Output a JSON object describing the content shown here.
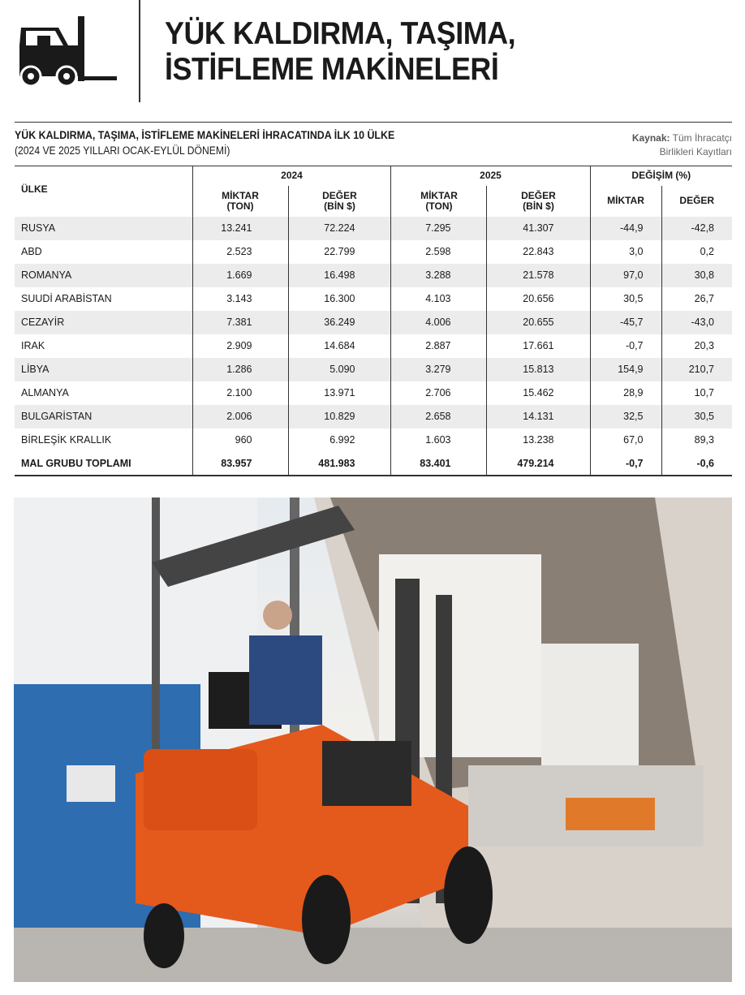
{
  "header": {
    "title_line1": "YÜK KALDIRMA, TAŞIMA,",
    "title_line2": "İSTİFLEME MAKİNELERİ",
    "icon": "forklift-icon"
  },
  "table_info": {
    "title": "YÜK KALDIRMA, TAŞIMA, İSTİFLEME MAKİNELERİ İHRACATINDA İLK 10 ÜLKE",
    "subtitle": "(2024 VE 2025 YILLARI OCAK-EYLÜL DÖNEMİ)",
    "source_label": "Kaynak:",
    "source_line1": "Tüm İhracatçı",
    "source_line2": "Birlikleri Kayıtları"
  },
  "columns": {
    "country": "ÜLKE",
    "y2024": "2024",
    "y2025": "2025",
    "change": "DEĞİŞİM (%)",
    "qty_l1": "MİKTAR",
    "qty_l2": "(TON)",
    "val_l1": "DEĞER",
    "val_l2": "(BİN $)",
    "chg_qty": "MİKTAR",
    "chg_val": "DEĞER"
  },
  "rows": [
    [
      "RUSYA",
      "13.241",
      "72.224",
      "7.295",
      "41.307",
      "-44,9",
      "-42,8"
    ],
    [
      "ABD",
      "2.523",
      "22.799",
      "2.598",
      "22.843",
      "3,0",
      "0,2"
    ],
    [
      "ROMANYA",
      "1.669",
      "16.498",
      "3.288",
      "21.578",
      "97,0",
      "30,8"
    ],
    [
      "SUUDİ ARABİSTAN",
      "3.143",
      "16.300",
      "4.103",
      "20.656",
      "30,5",
      "26,7"
    ],
    [
      "CEZAYİR",
      "7.381",
      "36.249",
      "4.006",
      "20.655",
      "-45,7",
      "-43,0"
    ],
    [
      "IRAK",
      "2.909",
      "14.684",
      "2.887",
      "17.661",
      "-0,7",
      "20,3"
    ],
    [
      "LİBYA",
      "1.286",
      "5.090",
      "3.279",
      "15.813",
      "154,9",
      "210,7"
    ],
    [
      "ALMANYA",
      "2.100",
      "13.971",
      "2.706",
      "15.462",
      "28,9",
      "10,7"
    ],
    [
      "BULGARİSTAN",
      "2.006",
      "10.829",
      "2.658",
      "14.131",
      "32,5",
      "30,5"
    ],
    [
      "BİRLEŞİK KRALLIK",
      "960",
      "6.992",
      "1.603",
      "13.238",
      "67,0",
      "89,3"
    ],
    [
      "MAL GRUBU TOPLAMI",
      "83.957",
      "481.983",
      "83.401",
      "479.214",
      "-0,7",
      "-0,6"
    ]
  ],
  "colors": {
    "forklift": "#e4591c",
    "wall": "#2e6db0"
  }
}
